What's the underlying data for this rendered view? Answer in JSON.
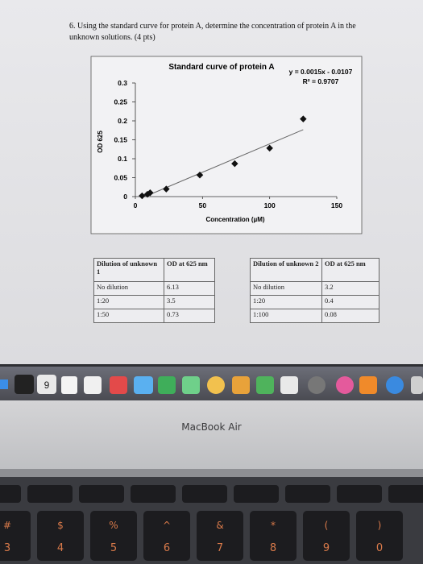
{
  "question": "6. Using the standard curve for protein A, determine the concentration of protein A in the unknown solutions. (4 pts)",
  "chart_data": {
    "type": "scatter",
    "title": "Standard curve of protein A",
    "annotations": [
      "y = 0.0015x - 0.0107",
      "R² = 0.9707"
    ],
    "x_label": "Concentration (µM)",
    "y_label": "OD 625",
    "x": [
      5,
      9,
      11,
      23,
      48,
      74,
      100,
      125
    ],
    "values": [
      0.002,
      0.006,
      0.01,
      0.02,
      0.057,
      0.087,
      0.128,
      0.205
    ],
    "color": "#111111",
    "trendline": {
      "slope": 0.0015,
      "intercept": -0.0107
    },
    "xlim": [
      0,
      150
    ],
    "xticks": [
      0,
      50,
      100,
      150
    ],
    "ylim": [
      0,
      0.3
    ],
    "yticks": [
      0,
      0.05,
      0.1,
      0.15,
      0.2,
      0.25,
      0.3
    ]
  },
  "tables": [
    {
      "header": [
        "Dilution of unknown 1",
        "OD at 625 nm"
      ],
      "rows": [
        [
          "No dilution",
          6.13
        ],
        [
          "1:20",
          3.5
        ],
        [
          "1:50",
          0.73
        ]
      ]
    },
    {
      "header": [
        "Dilution of unknown 2",
        "OD at 625 nm"
      ],
      "rows": [
        [
          "No dilution",
          3.2
        ],
        [
          "1:20",
          0.4
        ],
        [
          "1:100",
          0.08
        ]
      ]
    }
  ],
  "dock": {
    "calendar_day": "9"
  },
  "bezel_label": "MacBook Air",
  "keyboard": {
    "symbol_row": [
      "#",
      "$",
      "%",
      "^",
      "&",
      "*",
      "(",
      ")"
    ],
    "number_row": [
      "3",
      "4",
      "5",
      "6",
      "7",
      "8",
      "9",
      "0"
    ]
  }
}
